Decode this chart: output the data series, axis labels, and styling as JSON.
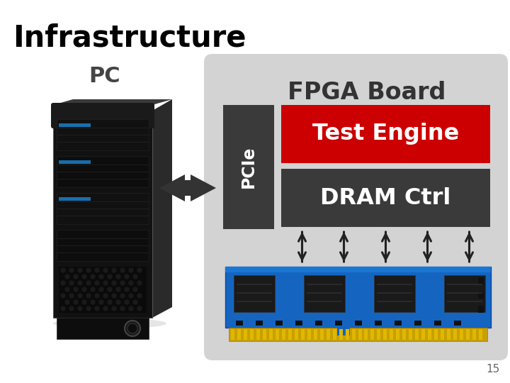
{
  "title": "Infrastructure",
  "title_fontsize": 30,
  "pc_label": "PC",
  "fpga_label": "FPGA Board",
  "pcie_label": "PCIe",
  "test_engine_label": "Test Engine",
  "dram_ctrl_label": "DRAM Ctrl",
  "page_number": "15",
  "bg_color": "#ffffff",
  "fpga_box_color": "#d3d3d3",
  "pcie_box_color": "#3a3a3a",
  "test_engine_box_color": "#cc0000",
  "dram_ctrl_box_color": "#3a3a3a",
  "title_color": "#000000",
  "pc_label_color": "#444444",
  "fpga_label_color": "#333333",
  "pcie_text_color": "#ffffff",
  "test_engine_text_color": "#ffffff",
  "dram_ctrl_text_color": "#ffffff",
  "arrow_color": "#333333"
}
